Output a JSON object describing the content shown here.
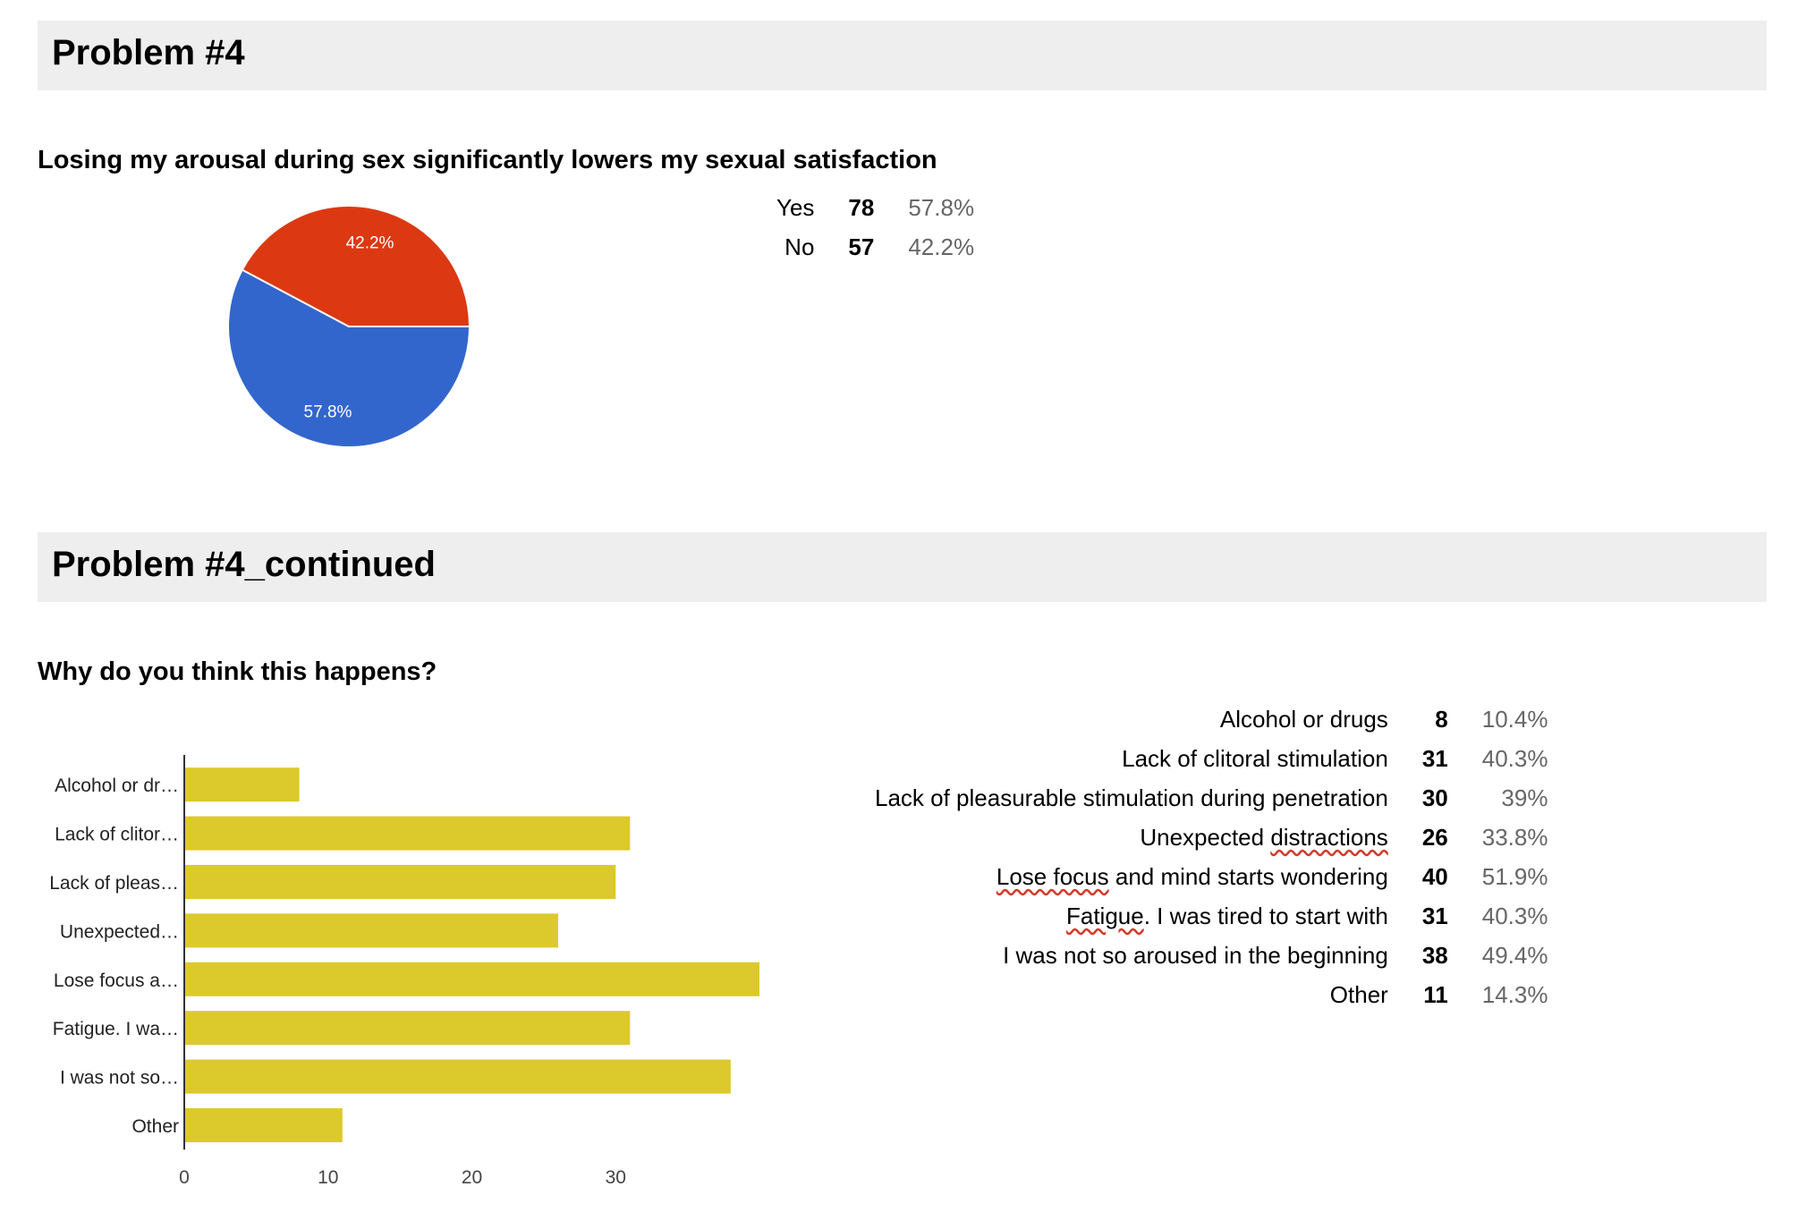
{
  "sections": [
    {
      "header": "Problem #4",
      "question": "Losing my arousal during sex significantly lowers my sexual satisfaction",
      "summary": [
        {
          "label": "Yes",
          "count": "78",
          "percent": "57.8%"
        },
        {
          "label": "No",
          "count": "57",
          "percent": "42.2%"
        }
      ]
    },
    {
      "header": "Problem #4_continued",
      "question": "Why do you think this happens?",
      "summary": [
        {
          "label": "Alcohol or drugs",
          "count": "8",
          "percent": "10.4%"
        },
        {
          "label": "Lack of clitoral stimulation",
          "count": "31",
          "percent": "40.3%"
        },
        {
          "label": "Lack of pleasurable stimulation during penetration",
          "count": "30",
          "percent": "39%"
        },
        {
          "label": "Unexpected distractions ",
          "count": "26",
          "percent": "33.8%"
        },
        {
          "label": "Lose focus and mind starts wondering",
          "count": "40",
          "percent": "51.9%"
        },
        {
          "label": "Fatigue. I was tired to start with",
          "count": "31",
          "percent": "40.3%"
        },
        {
          "label": "I was not so aroused in the beginning",
          "count": "38",
          "percent": "49.4%"
        },
        {
          "label": "Other",
          "count": "11",
          "percent": "14.3%"
        }
      ]
    }
  ],
  "chart_data": [
    {
      "type": "pie",
      "categories": [
        "Yes",
        "No"
      ],
      "values": [
        78,
        57
      ],
      "slice_labels": [
        "57.8%",
        "42.2%"
      ],
      "colors": [
        "#3366cc",
        "#dc3912"
      ]
    },
    {
      "type": "bar",
      "orientation": "horizontal",
      "categories": [
        "Alcohol or dr…",
        "Lack of clitor…",
        "Lack of pleas…",
        "Unexpected…",
        "Lose focus a…",
        "Fatigue. I wa…",
        "I was not so…",
        "Other"
      ],
      "values": [
        8,
        31,
        30,
        26,
        40,
        31,
        38,
        11
      ],
      "xticks": [
        "0",
        "10",
        "20",
        "30"
      ],
      "xlim": [
        0,
        40
      ],
      "color": "#dcc92c"
    }
  ]
}
